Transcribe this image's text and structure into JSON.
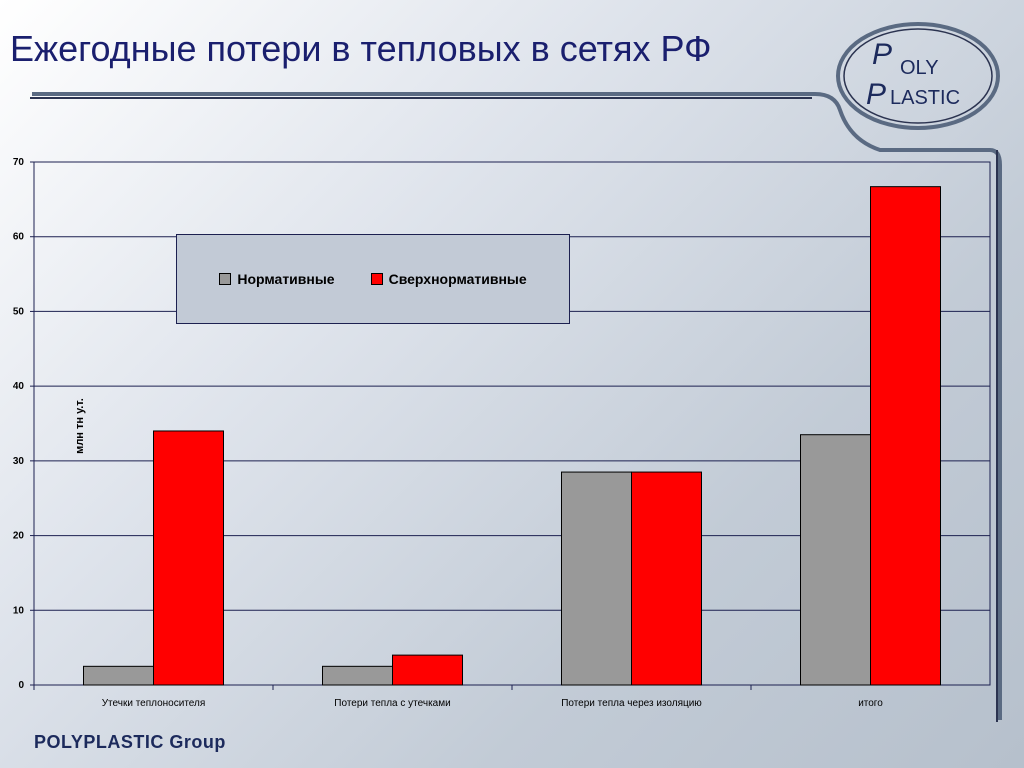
{
  "slide": {
    "title": "Ежегодные потери в тепловых в сетях РФ",
    "footer": "POLYPLASTIC Group",
    "logo_text": [
      "OLY",
      "LASTIC"
    ]
  },
  "colors": {
    "series_gray": "#999999",
    "series_red": "#ff0000",
    "title_color": "#1a1f6e",
    "grid_line": "#1c2050"
  },
  "chart_data": {
    "type": "bar",
    "ylabel": "млн тн у.т.",
    "ylim": [
      0,
      70
    ],
    "yticks": [
      "0",
      "10",
      "20",
      "30",
      "40",
      "50",
      "60",
      "70"
    ],
    "categories": [
      "Утечки теплоносителя",
      "Потери тепла с утечками",
      "Потери тепла через изоляцию",
      "итого"
    ],
    "series": [
      {
        "name": "Нормативные",
        "color": "#999999",
        "values": [
          2.5,
          2.5,
          28.5,
          33.5
        ]
      },
      {
        "name": "Сверхнормативные",
        "color": "#ff0000",
        "values": [
          34,
          4,
          28.5,
          66.7
        ]
      }
    ],
    "grid": true,
    "legend_position": "top-left"
  }
}
